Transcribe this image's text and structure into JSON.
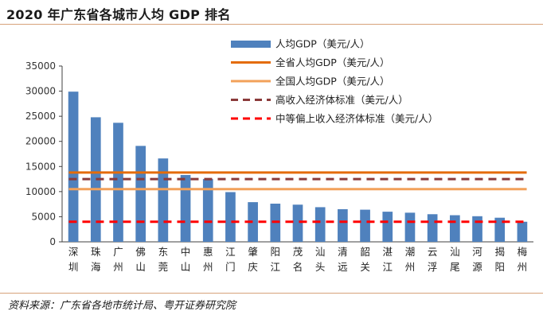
{
  "page": {
    "title": "2020 年广东省各城市人均 GDP 排名",
    "source": "资料来源：广东省各地市统计局、粤开证券研究院"
  },
  "chart_data": {
    "type": "bar",
    "title": "2020 年广东省各城市人均 GDP 排名",
    "xlabel": "",
    "ylabel": "",
    "ylim": [
      0,
      35000
    ],
    "yticks": [
      "0",
      "5000",
      "10000",
      "15000",
      "20000",
      "25000",
      "30000",
      "35000"
    ],
    "grid": false,
    "legend_position": "top-right",
    "categories": [
      "深圳",
      "珠海",
      "广州",
      "佛山",
      "东莞",
      "中山",
      "惠州",
      "江门",
      "肇庆",
      "阳江",
      "茂名",
      "汕头",
      "清远",
      "韶关",
      "湛江",
      "潮州",
      "云浮",
      "汕尾",
      "河源",
      "揭阳",
      "梅州"
    ],
    "series": [
      {
        "name": "人均GDP（美元/人）",
        "kind": "bar",
        "color": "#4f81bd",
        "values": [
          29900,
          24800,
          23700,
          19100,
          16600,
          13300,
          12500,
          9900,
          7900,
          7600,
          7400,
          6900,
          6500,
          6400,
          6000,
          5800,
          5500,
          5300,
          5100,
          4800,
          4000
        ]
      },
      {
        "name": "全省人均GDP（美元/人）",
        "kind": "hline",
        "style": "solid",
        "color": "#e46c0a",
        "value": 13800
      },
      {
        "name": "全国人均GDP（美元/人）",
        "kind": "hline",
        "style": "solid",
        "color": "#f2a15a",
        "value": 10500
      },
      {
        "name": "高收入经济体标准（美元/人）",
        "kind": "hline",
        "style": "dashed",
        "color": "#8b3a3a",
        "value": 12500
      },
      {
        "name": "中等偏上收入经济体标准（美元/人）",
        "kind": "hline",
        "style": "dashed",
        "color": "#ff0000",
        "value": 4000
      }
    ]
  }
}
